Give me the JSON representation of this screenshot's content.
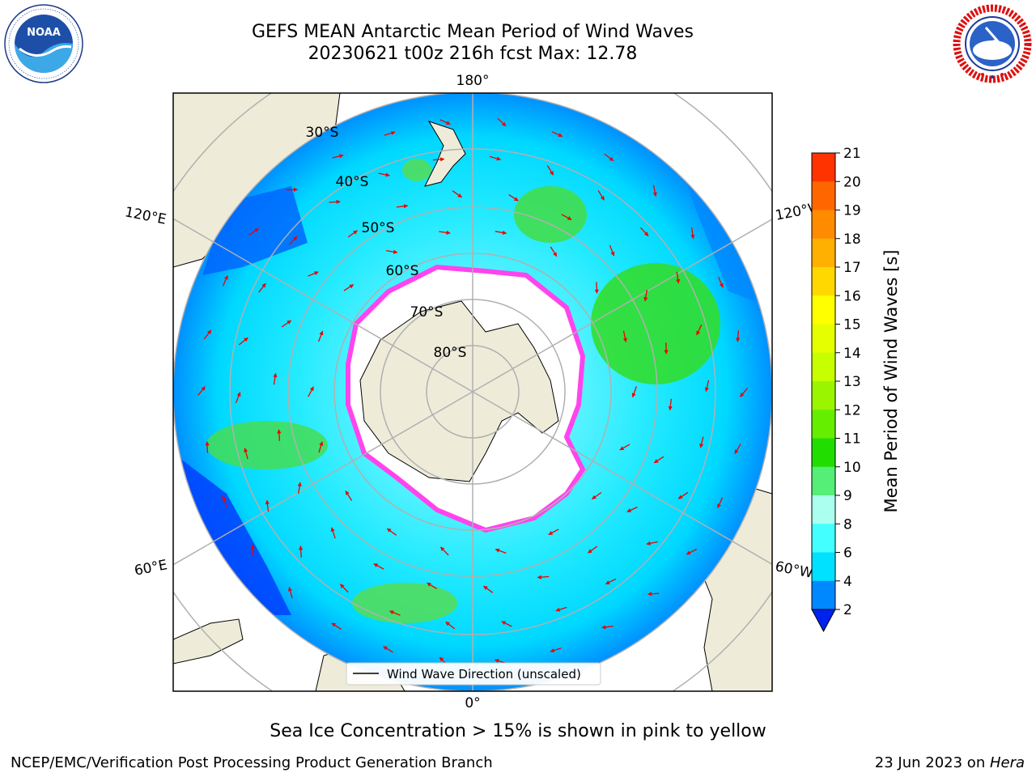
{
  "header": {
    "title_line1": "GEFS MEAN Antarctic Mean Period of Wind Waves",
    "title_line2": "20230621 t00z 216h fcst   Max: 12.78"
  },
  "logos": {
    "noaa": {
      "text": "NOAA",
      "ring_text": "NATIONAL OCEANIC AND ATMOSPHERIC ADMINISTRATION · U.S. DEPARTMENT OF COMMERCE ·"
    },
    "nws": {
      "ring_text": "NATIONAL WEATHER SERVICE"
    }
  },
  "map": {
    "longitude_labels": {
      "top": "180°",
      "bottom": "0°",
      "upper_left": "120°E",
      "upper_right": "120°W",
      "lower_left": "60°E",
      "lower_right": "60°W"
    },
    "latitude_labels": [
      "30°S",
      "40°S",
      "50°S",
      "60°S",
      "70°S",
      "80°S"
    ],
    "legend_label": "Wind Wave Direction (unscaled)",
    "colors": {
      "land": "#eeecd9",
      "ice": "#ffffff",
      "ice_edge": "#ff44ee",
      "arrow": "#ee0000",
      "grid": "#b0b0b0"
    }
  },
  "colorbar": {
    "label": "Mean Period of Wind Waves [s]",
    "ticks": [
      "21",
      "20",
      "19",
      "18",
      "17",
      "16",
      "15",
      "14",
      "13",
      "12",
      "11",
      "10",
      "9",
      "8",
      "6",
      "4",
      "2"
    ],
    "colors": [
      "#ff0000",
      "#ff3300",
      "#ff6600",
      "#ff8c00",
      "#ffb000",
      "#ffd800",
      "#ffff00",
      "#e6ff00",
      "#c8ff00",
      "#99f500",
      "#66ee00",
      "#22dd00",
      "#55ee77",
      "#aaffee",
      "#44ffff",
      "#00e0ff",
      "#0088ff"
    ],
    "extend_color": "#0022ee"
  },
  "bottom_note": "Sea Ice Concentration > 15% is shown in pink to yellow",
  "footer": {
    "left": "NCEP/EMC/Verification Post Processing Product Generation Branch",
    "right_prefix": "23 Jun 2023 on ",
    "right_host": "Hera"
  }
}
